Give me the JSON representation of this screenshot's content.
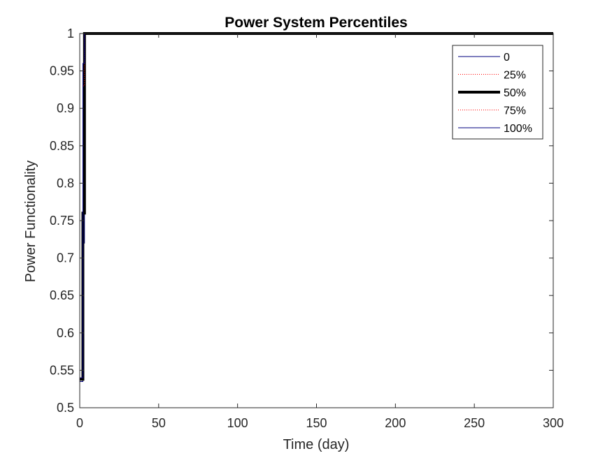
{
  "chart_data": {
    "type": "line",
    "title": "Power System Percentiles",
    "xlabel": "Time (day)",
    "ylabel": "Power Functionality",
    "xlim": [
      0,
      300
    ],
    "ylim": [
      0.5,
      1
    ],
    "xticks": [
      0,
      50,
      100,
      150,
      200,
      250,
      300
    ],
    "yticks": [
      0.5,
      0.55,
      0.6,
      0.65,
      0.7,
      0.75,
      0.8,
      0.85,
      0.9,
      0.95,
      1
    ],
    "grid": false,
    "legend_position": "top-right",
    "series": [
      {
        "name": "0",
        "color": "#00007f",
        "style": "solid",
        "weight": "thin",
        "x": [
          0,
          2,
          2,
          3,
          3,
          300
        ],
        "y": [
          0.535,
          0.535,
          0.72,
          0.72,
          1,
          1
        ]
      },
      {
        "name": "25%",
        "color": "#ff0000",
        "style": "dotted",
        "weight": "thin",
        "x": [
          0,
          2,
          2,
          3,
          3,
          300
        ],
        "y": [
          0.538,
          0.538,
          0.76,
          0.76,
          1,
          1
        ]
      },
      {
        "name": "50%",
        "color": "#000000",
        "style": "solid",
        "weight": "thick",
        "x": [
          0,
          2,
          2,
          3,
          3,
          300
        ],
        "y": [
          0.538,
          0.538,
          0.76,
          0.76,
          1,
          1
        ]
      },
      {
        "name": "75%",
        "color": "#ff0000",
        "style": "dotted",
        "weight": "thin",
        "x": [
          0,
          2,
          2,
          3,
          3,
          300
        ],
        "y": [
          0.54,
          0.54,
          0.93,
          0.93,
          1,
          1
        ]
      },
      {
        "name": "100%",
        "color": "#00007f",
        "style": "solid",
        "weight": "thin",
        "x": [
          0,
          2,
          2,
          3,
          3,
          300
        ],
        "y": [
          0.54,
          0.54,
          0.96,
          0.96,
          1,
          1
        ]
      }
    ]
  }
}
